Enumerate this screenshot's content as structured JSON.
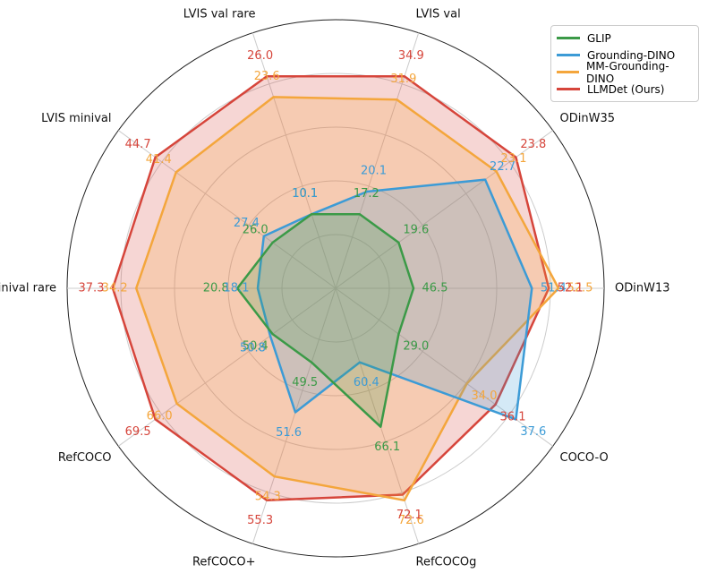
{
  "chart_data": {
    "type": "radar",
    "categories": [
      "ODinW13",
      "ODinW35",
      "LVIS val",
      "LVIS val rare",
      "LVIS minival",
      "LVIS minival rare",
      "RefCOCO",
      "RefCOCO+",
      "RefCOCOg",
      "COCO-O"
    ],
    "series": [
      {
        "name": "GLIP",
        "color": "#3b9a47",
        "values": [
          46.5,
          19.6,
          17.2,
          10.1,
          26.0,
          20.8,
          50.4,
          49.5,
          66.1,
          29.0
        ],
        "value_labels": [
          "46.5",
          "19.6",
          "17.2",
          "10.1",
          "26.0",
          "20.8",
          "50.4",
          "49.5",
          "66.1",
          "29.0"
        ]
      },
      {
        "name": "Grounding-DINO",
        "color": "#3c9bd6",
        "values": [
          51.4,
          22.7,
          20.1,
          10.1,
          27.4,
          18.1,
          50.8,
          51.6,
          60.4,
          37.6
        ],
        "value_labels": [
          "51.4",
          "22.7",
          "20.1",
          "10.1",
          "27.4",
          "18.1",
          "50.8",
          "51.6",
          "60.4",
          "37.6"
        ]
      },
      {
        "name": "MM-Grounding-DINO",
        "color": "#f4a63c",
        "values": [
          52.5,
          23.1,
          31.9,
          23.6,
          41.4,
          34.2,
          66.0,
          54.3,
          72.6,
          34.0
        ],
        "value_labels": [
          "52.5",
          "23.1",
          "31.9",
          "23.6",
          "41.4",
          "34.2",
          "66.0",
          "54.3",
          "72.6",
          "34.0"
        ]
      },
      {
        "name": "LLMDet (Ours)",
        "color": "#d6453b",
        "values": [
          52.1,
          23.8,
          34.9,
          26.0,
          44.7,
          37.3,
          69.5,
          55.3,
          72.1,
          36.1
        ],
        "value_labels": [
          "52.1",
          "23.8",
          "34.9",
          "26.0",
          "44.7",
          "37.3",
          "69.5",
          "55.3",
          "72.1",
          "36.1"
        ]
      }
    ],
    "legend": "upper right",
    "grid": true
  }
}
